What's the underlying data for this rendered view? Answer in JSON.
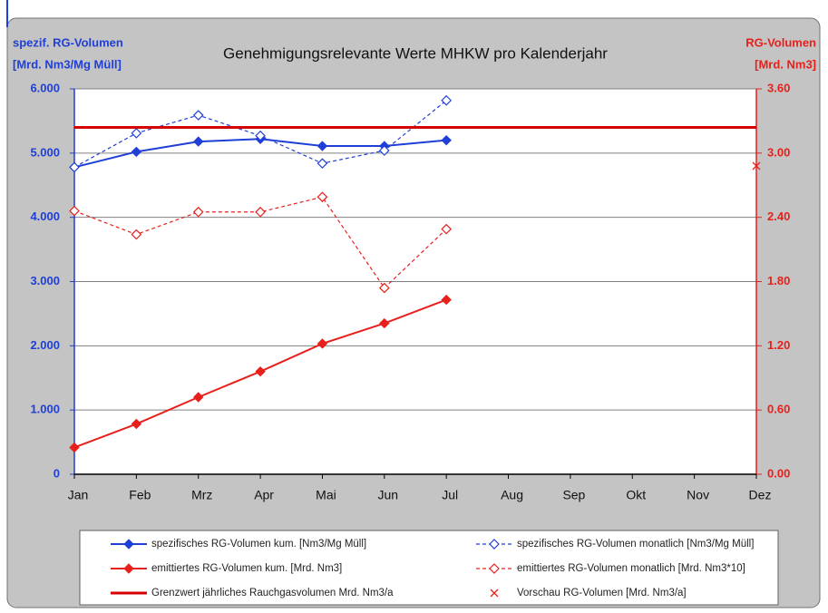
{
  "chart_data": {
    "type": "line",
    "title": "Genehmigungsrelevante Werte MHKW pro Kalenderjahr",
    "y_label": [
      "spezif. RG-Volumen",
      "[Mrd. Nm3/Mg Müll]"
    ],
    "y2_label": [
      "RG-Volumen",
      "[Mrd. Nm3]"
    ],
    "categories": [
      "Jan",
      "Feb",
      "Mrz",
      "Apr",
      "Mai",
      "Jun",
      "Jul",
      "Aug",
      "Sep",
      "Okt",
      "Nov",
      "Dez"
    ],
    "ylim": [
      0,
      6000
    ],
    "yticks": [
      0,
      {
        "value": 1000,
        "label": "1.000"
      },
      {
        "value": 2000,
        "label": "2.000"
      },
      {
        "value": 3000,
        "label": "3.000"
      },
      {
        "value": 4000,
        "label": "4.000"
      },
      {
        "value": 5000,
        "label": "5.000"
      },
      {
        "value": 6000,
        "label": "6.000"
      }
    ],
    "y2lim": [
      0,
      3.6
    ],
    "y2ticks": [
      {
        "value": 0,
        "label": "0.00"
      },
      {
        "value": 0.6,
        "label": "0.60"
      },
      {
        "value": 1.2,
        "label": "1.20"
      },
      {
        "value": 1.8,
        "label": "1.80"
      },
      {
        "value": 2.4,
        "label": "2.40"
      },
      {
        "value": 3.0,
        "label": "3.00"
      },
      {
        "value": 3.6,
        "label": "3.60"
      }
    ],
    "grid": true,
    "series": [
      {
        "name": "spezifisches RG-Volumen kum. [Nm3/Mg Müll]",
        "color": "#1f3fd6",
        "axis": "y",
        "style": "solid",
        "marker": "diamond-filled",
        "values": [
          4780,
          5020,
          5180,
          5220,
          5110,
          5110,
          5200,
          null,
          null,
          null,
          null,
          null
        ]
      },
      {
        "name": "spezifisches RG-Volumen monatlich [Nm3/Mg Müll]",
        "color": "#1f3fd6",
        "axis": "y",
        "style": "dashed",
        "marker": "diamond-open",
        "values": [
          4780,
          5310,
          5590,
          5270,
          4840,
          5040,
          5820,
          null,
          null,
          null,
          null,
          null
        ]
      },
      {
        "name": "emittiertes RG-Volumen kum. [Mrd. Nm3]",
        "color": "#e8201c",
        "axis": "y2",
        "style": "solid",
        "marker": "diamond-filled",
        "values": [
          0.25,
          0.47,
          0.72,
          0.96,
          1.22,
          1.41,
          1.63,
          null,
          null,
          null,
          null,
          null
        ]
      },
      {
        "name": "emittiertes RG-Volumen monatlich [Mrd. Nm3*10]",
        "color": "#e8201c",
        "axis": "y2",
        "style": "dashed",
        "marker": "diamond-open",
        "values": [
          2.46,
          2.24,
          2.45,
          2.45,
          2.59,
          1.74,
          2.29,
          null,
          null,
          null,
          null,
          null
        ]
      },
      {
        "name": "Grenzwert jährliches Rauchgasvolumen Mrd. Nm3/a",
        "color": "#d40000",
        "axis": "y2",
        "style": "thick",
        "marker": "none",
        "values": [
          3.24,
          3.24,
          3.24,
          3.24,
          3.24,
          3.24,
          3.24,
          3.24,
          3.24,
          3.24,
          3.24,
          3.24
        ]
      },
      {
        "name": "Vorschau RG-Volumen [Mrd. Nm3/a]",
        "color": "#e8201c",
        "axis": "y2",
        "style": "none",
        "marker": "x",
        "values": [
          null,
          null,
          null,
          null,
          null,
          null,
          null,
          null,
          null,
          null,
          null,
          2.88
        ]
      }
    ]
  }
}
